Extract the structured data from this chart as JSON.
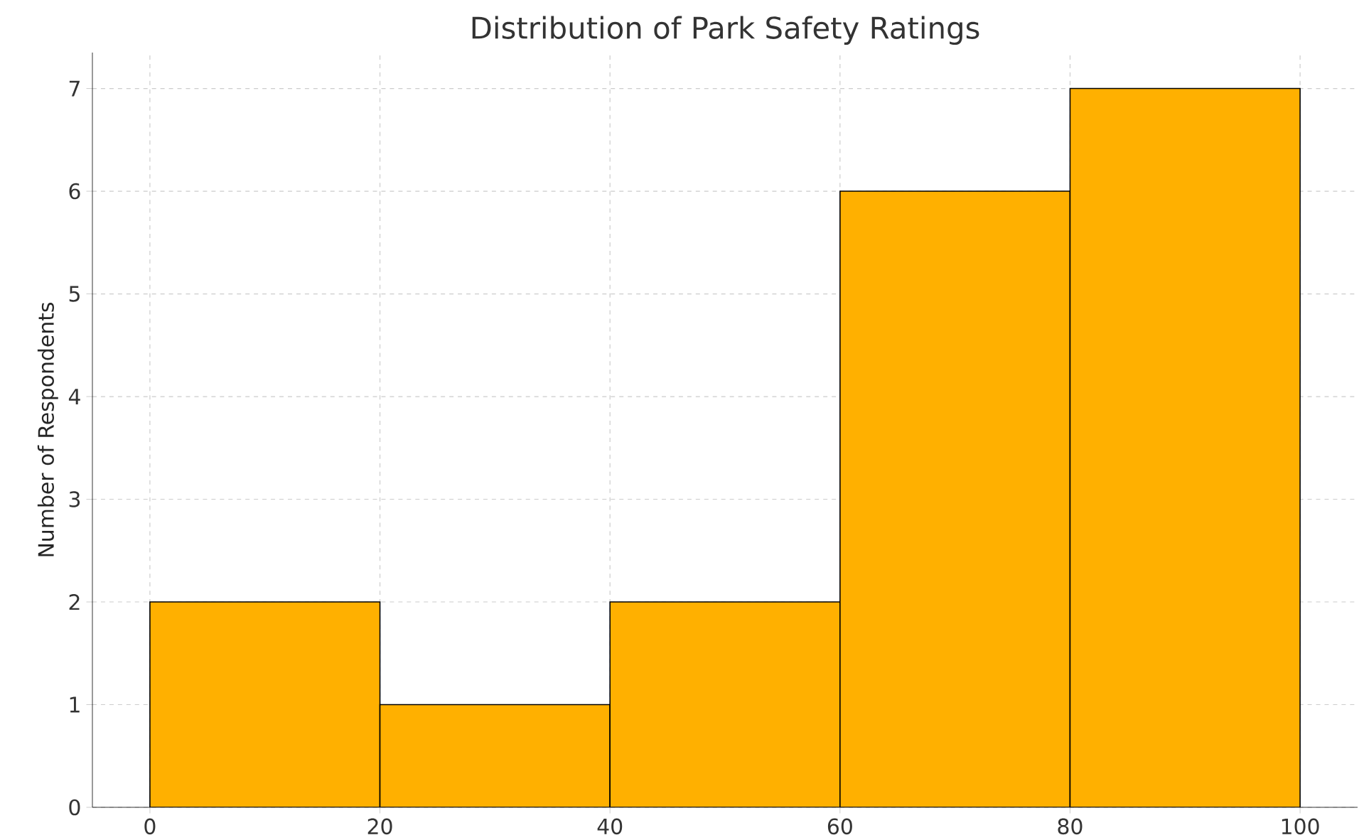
{
  "chart_data": {
    "type": "histogram",
    "title": "Distribution of Park Safety Ratings",
    "ylabel": "Number of Respondents",
    "bins": [
      0,
      20,
      40,
      60,
      80,
      100
    ],
    "values": [
      2,
      1,
      2,
      6,
      7
    ],
    "color": "#ffb000",
    "xlim": [
      -5,
      105
    ],
    "ylim": [
      0,
      7.35
    ],
    "xticks": [
      0,
      20,
      40,
      60,
      80,
      100
    ],
    "yticks": [
      0,
      1,
      2,
      3,
      4,
      5,
      6,
      7
    ],
    "grid": true
  }
}
